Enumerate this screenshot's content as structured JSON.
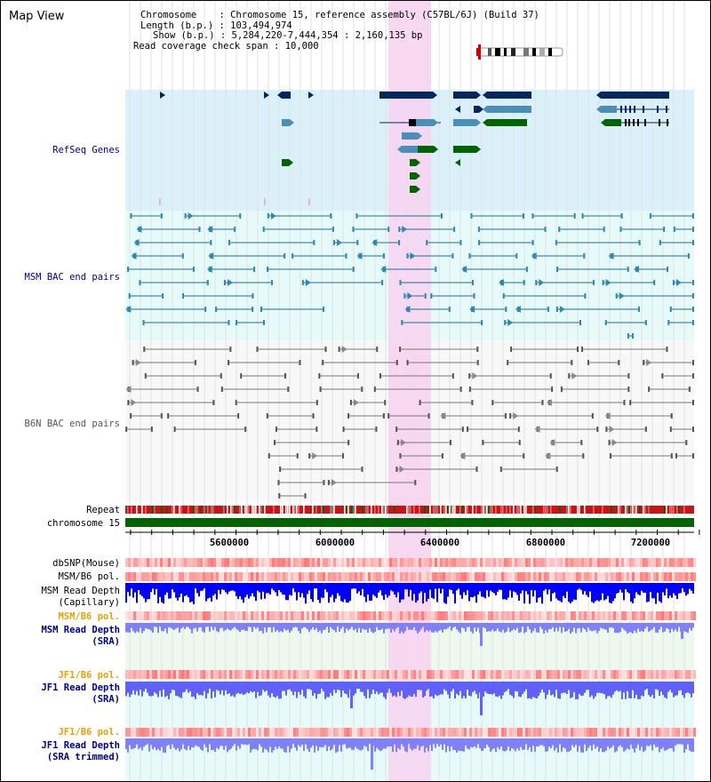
{
  "page_title": "Map View",
  "info": {
    "chromosome_label": "Chromosome",
    "chromosome_value": "Chromosome 15, reference assembly (C57BL/6J) (Build 37)",
    "length_label": "Length (b.p.)",
    "length_value": "103,494,974",
    "show_label": "Show (b.p.)",
    "show_value": "5,284,220-7,444,354 : 2,160,135 bp",
    "coverage_label": "Read coverage check span",
    "coverage_value": "10,000"
  },
  "tracks": {
    "refseq": "RefSeq Genes",
    "msm_bac": "MSM BAC end pairs",
    "b6n_bac": "B6N BAC end pairs",
    "repeat": "Repeat",
    "chromosome": "chromosome 15",
    "dbsnp": "dbSNP(Mouse)",
    "msm_b6_pol_1": "MSM/B6 pol.",
    "msm_depth_cap_1": "MSM Read Depth",
    "msm_depth_cap_2": "(Capillary)",
    "msm_b6_pol_2": "MSM/B6 pol.",
    "msm_depth_sra_1": "MSM Read Depth",
    "msm_depth_sra_2": "(SRA)",
    "jf1_b6_pol_1": "JF1/B6 pol.",
    "jf1_depth_sra_1": "JF1 Read Depth",
    "jf1_depth_sra_2": "(SRA)",
    "jf1_b6_pol_2": "JF1/B6 pol.",
    "jf1_depth_trim_1": "JF1 Read Depth",
    "jf1_depth_trim_2": "(SRA trimmed)"
  },
  "ruler": {
    "ticks": [
      "5600000",
      "6000000",
      "6400000",
      "6800000",
      "7200000"
    ]
  },
  "colors": {
    "refseq_bg": "#daf0fa",
    "msm_bg": "#e6fafa",
    "highlight": "#f8d2f0",
    "label_blue": "#00008b",
    "label_orange": "#e6a000",
    "gene_dark": "#00285f",
    "gene_mid": "#4a8fb8",
    "gene_green": "#006400",
    "chrom_green": "#006400",
    "depth_blue": "#0000ff",
    "depth_light": "#7a7aff"
  }
}
